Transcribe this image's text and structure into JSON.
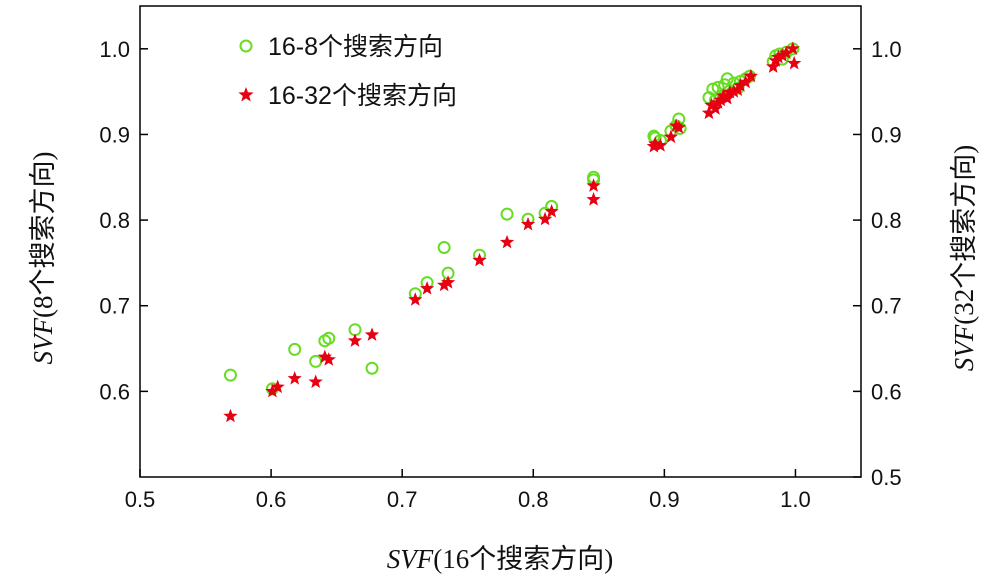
{
  "chart_data": {
    "type": "scatter",
    "xlabel_var": "SVF",
    "xlabel_rest": "(16个搜索方向)",
    "ylabel_left_var": "SVF",
    "ylabel_left_rest": "(8个搜索方向)",
    "ylabel_right_var": "SVF",
    "ylabel_right_rest": "(32个搜索方向)",
    "xlim": [
      0.5,
      1.05
    ],
    "ylim": [
      0.5,
      1.05
    ],
    "x_ticks": [
      "0.5",
      "0.6",
      "0.7",
      "0.8",
      "0.9",
      "1.0"
    ],
    "y_left_ticks": [
      "0.6",
      "0.7",
      "0.8",
      "0.9",
      "1.0"
    ],
    "y_right_ticks": [
      "0.5",
      "0.6",
      "0.7",
      "0.8",
      "0.9",
      "1.0"
    ],
    "legend_position": "top-left",
    "series": [
      {
        "name": "16-8个搜索方向",
        "marker": "circle",
        "color": "#66dd22",
        "points": [
          [
            0.569,
            0.619
          ],
          [
            0.601,
            0.603
          ],
          [
            0.618,
            0.649
          ],
          [
            0.634,
            0.635
          ],
          [
            0.641,
            0.659
          ],
          [
            0.644,
            0.662
          ],
          [
            0.664,
            0.672
          ],
          [
            0.677,
            0.627
          ],
          [
            0.71,
            0.714
          ],
          [
            0.719,
            0.727
          ],
          [
            0.732,
            0.768
          ],
          [
            0.735,
            0.738
          ],
          [
            0.759,
            0.759
          ],
          [
            0.78,
            0.807
          ],
          [
            0.796,
            0.801
          ],
          [
            0.809,
            0.808
          ],
          [
            0.814,
            0.816
          ],
          [
            0.846,
            0.85
          ],
          [
            0.846,
            0.847
          ],
          [
            0.892,
            0.898
          ],
          [
            0.893,
            0.896
          ],
          [
            0.897,
            0.893
          ],
          [
            0.905,
            0.904
          ],
          [
            0.909,
            0.91
          ],
          [
            0.911,
            0.918
          ],
          [
            0.912,
            0.907
          ],
          [
            0.934,
            0.943
          ],
          [
            0.937,
            0.953
          ],
          [
            0.939,
            0.94
          ],
          [
            0.941,
            0.955
          ],
          [
            0.943,
            0.945
          ],
          [
            0.946,
            0.958
          ],
          [
            0.948,
            0.965
          ],
          [
            0.95,
            0.951
          ],
          [
            0.953,
            0.96
          ],
          [
            0.956,
            0.954
          ],
          [
            0.958,
            0.962
          ],
          [
            0.962,
            0.965
          ],
          [
            0.965,
            0.968
          ],
          [
            0.983,
            0.985
          ],
          [
            0.985,
            0.992
          ],
          [
            0.988,
            0.994
          ],
          [
            0.99,
            0.988
          ],
          [
            0.993,
            0.996
          ],
          [
            0.998,
            1.0
          ]
        ]
      },
      {
        "name": "16-32个搜索方向",
        "marker": "star",
        "color": "#e60012",
        "points": [
          [
            0.569,
            0.571
          ],
          [
            0.601,
            0.6
          ],
          [
            0.605,
            0.605
          ],
          [
            0.618,
            0.615
          ],
          [
            0.634,
            0.611
          ],
          [
            0.641,
            0.64
          ],
          [
            0.644,
            0.637
          ],
          [
            0.664,
            0.659
          ],
          [
            0.677,
            0.666
          ],
          [
            0.71,
            0.707
          ],
          [
            0.719,
            0.72
          ],
          [
            0.732,
            0.724
          ],
          [
            0.735,
            0.727
          ],
          [
            0.759,
            0.753
          ],
          [
            0.78,
            0.774
          ],
          [
            0.796,
            0.795
          ],
          [
            0.809,
            0.801
          ],
          [
            0.814,
            0.81
          ],
          [
            0.846,
            0.84
          ],
          [
            0.846,
            0.824
          ],
          [
            0.892,
            0.886
          ],
          [
            0.893,
            0.889
          ],
          [
            0.897,
            0.887
          ],
          [
            0.905,
            0.897
          ],
          [
            0.909,
            0.91
          ],
          [
            0.911,
            0.908
          ],
          [
            0.934,
            0.925
          ],
          [
            0.936,
            0.934
          ],
          [
            0.939,
            0.93
          ],
          [
            0.941,
            0.937
          ],
          [
            0.943,
            0.94
          ],
          [
            0.945,
            0.945
          ],
          [
            0.948,
            0.942
          ],
          [
            0.95,
            0.949
          ],
          [
            0.953,
            0.95
          ],
          [
            0.956,
            0.952
          ],
          [
            0.958,
            0.957
          ],
          [
            0.962,
            0.961
          ],
          [
            0.966,
            0.968
          ],
          [
            0.983,
            0.979
          ],
          [
            0.985,
            0.986
          ],
          [
            0.987,
            0.99
          ],
          [
            0.99,
            0.992
          ],
          [
            0.993,
            0.995
          ],
          [
            0.998,
            1.0
          ],
          [
            0.999,
            0.983
          ]
        ]
      }
    ]
  }
}
